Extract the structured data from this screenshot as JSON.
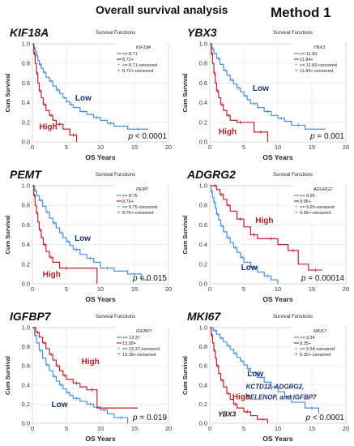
{
  "header": {
    "title": "Overall survival analysis",
    "method": "Method 1"
  },
  "colors": {
    "low": "#4a90d9",
    "high": "#c0202b",
    "gene_label": "#111111",
    "low_label": "#1c2f6b",
    "high_label": "#b01c1c"
  },
  "chart_data": [
    {
      "type": "line",
      "gene": "KIF18A",
      "title": "Survival Functions",
      "xlabel": "OS Years",
      "ylabel": "Cum Survival",
      "xlim": [
        0,
        20
      ],
      "ylim": [
        0,
        1.0
      ],
      "x_ticks": [
        "0",
        "5",
        "10",
        "15",
        "20"
      ],
      "y_ticks": [
        "0.0",
        "0.2",
        "0.4",
        "0.6",
        "0.8",
        "1.0"
      ],
      "legend_title": "KIF18A",
      "legend": [
        "<= 8.71",
        "8.72+",
        "<= 8.71-censored",
        "8.72+-censored"
      ],
      "p_value": "< 0.0001",
      "curve_labels": [
        {
          "text": "Low",
          "group": "low",
          "x": 6.3,
          "y": 0.42
        },
        {
          "text": "High",
          "group": "high",
          "x": 1.0,
          "y": 0.13
        }
      ],
      "series": [
        {
          "name": "<= 8.71",
          "group": "low",
          "x": [
            0,
            0.2,
            0.4,
            0.6,
            0.8,
            1.0,
            1.3,
            1.6,
            2.0,
            2.5,
            3.0,
            3.5,
            4.0,
            4.5,
            5.0,
            5.5,
            6.0,
            7.0,
            8.0,
            9.0,
            10.0,
            11.0,
            12.0,
            14.0,
            17.0
          ],
          "y": [
            1.0,
            0.96,
            0.92,
            0.88,
            0.83,
            0.79,
            0.75,
            0.71,
            0.66,
            0.62,
            0.57,
            0.53,
            0.49,
            0.45,
            0.41,
            0.38,
            0.35,
            0.31,
            0.28,
            0.25,
            0.22,
            0.19,
            0.16,
            0.13,
            0.13
          ]
        },
        {
          "name": "8.72+",
          "group": "high",
          "x": [
            0,
            0.2,
            0.4,
            0.6,
            0.8,
            1.0,
            1.3,
            1.6,
            2.0,
            2.5,
            3.0,
            3.5,
            4.5,
            5.5,
            6.5
          ],
          "y": [
            1.0,
            0.9,
            0.8,
            0.7,
            0.6,
            0.52,
            0.45,
            0.38,
            0.32,
            0.27,
            0.22,
            0.18,
            0.13,
            0.07,
            0.0
          ]
        }
      ]
    },
    {
      "type": "line",
      "gene": "YBX3",
      "title": "Survival Functions",
      "xlabel": "OS Years",
      "ylabel": "Cum Survival",
      "xlim": [
        0,
        20
      ],
      "ylim": [
        0,
        1.0
      ],
      "x_ticks": [
        "0",
        "5",
        "10",
        "15",
        "20"
      ],
      "y_ticks": [
        "0.0",
        "0.2",
        "0.4",
        "0.6",
        "0.8",
        "1.0"
      ],
      "legend_title": "YBX3",
      "legend": [
        "<= 11.83",
        "11.84+",
        "<= 11.83-censored",
        "11.84+-censored"
      ],
      "p_value": "= 0.001",
      "curve_labels": [
        {
          "text": "Low",
          "group": "low",
          "x": 6.3,
          "y": 0.52
        },
        {
          "text": "High",
          "group": "high",
          "x": 1.3,
          "y": 0.08
        }
      ],
      "series": [
        {
          "name": "<= 11.83",
          "group": "low",
          "x": [
            0,
            0.3,
            0.6,
            1.0,
            1.5,
            2.0,
            2.5,
            3.0,
            3.5,
            4.0,
            4.5,
            5.0,
            5.5,
            6.0,
            7.0,
            8.0,
            9.0,
            10.0,
            11.0,
            12.0,
            14.0,
            17.0
          ],
          "y": [
            1.0,
            0.95,
            0.9,
            0.85,
            0.79,
            0.73,
            0.68,
            0.63,
            0.59,
            0.55,
            0.51,
            0.47,
            0.43,
            0.39,
            0.35,
            0.31,
            0.27,
            0.24,
            0.21,
            0.17,
            0.13,
            0.13
          ]
        },
        {
          "name": "11.84+",
          "group": "high",
          "x": [
            0,
            0.2,
            0.4,
            0.6,
            0.8,
            1.0,
            1.3,
            1.6,
            2.0,
            2.5,
            3.0,
            4.0,
            5.0,
            6.5,
            8.5
          ],
          "y": [
            1.0,
            0.9,
            0.8,
            0.7,
            0.6,
            0.52,
            0.45,
            0.38,
            0.32,
            0.27,
            0.22,
            0.2,
            0.2,
            0.1,
            0.0
          ]
        }
      ]
    },
    {
      "type": "line",
      "gene": "PEMT",
      "title": "Survival Functions",
      "xlabel": "OS Years",
      "ylabel": "Cum Survival",
      "xlim": [
        0,
        20
      ],
      "ylim": [
        0,
        1.0
      ],
      "x_ticks": [
        "0",
        "5",
        "10",
        "15",
        "20"
      ],
      "y_ticks": [
        "0.0",
        "0.2",
        "0.4",
        "0.6",
        "0.8",
        "1.0"
      ],
      "legend_title": "PEMT",
      "legend": [
        "<= 8.75",
        "8.76+",
        "<= 8.75-censored",
        "8.76+-censored"
      ],
      "p_value": "= 0.015",
      "curve_labels": [
        {
          "text": "Low",
          "group": "low",
          "x": 6.2,
          "y": 0.44
        },
        {
          "text": "High",
          "group": "high",
          "x": 1.5,
          "y": 0.07
        }
      ],
      "series": [
        {
          "name": "<= 8.75",
          "group": "low",
          "x": [
            0,
            0.3,
            0.6,
            1.0,
            1.5,
            2.0,
            2.5,
            3.0,
            3.5,
            4.0,
            4.5,
            5.0,
            5.5,
            6.0,
            7.0,
            8.0,
            9.0,
            10.0,
            12.0,
            14.0,
            16.0,
            17.0
          ],
          "y": [
            1.0,
            0.95,
            0.9,
            0.85,
            0.79,
            0.73,
            0.67,
            0.62,
            0.57,
            0.52,
            0.47,
            0.43,
            0.39,
            0.35,
            0.3,
            0.26,
            0.22,
            0.16,
            0.13,
            0.1,
            0.04,
            0.04
          ]
        },
        {
          "name": "8.76+",
          "group": "high",
          "x": [
            0,
            0.2,
            0.4,
            0.6,
            0.8,
            1.0,
            1.3,
            1.6,
            2.0,
            2.5,
            3.0,
            4.0,
            6.0,
            9.5
          ],
          "y": [
            1.0,
            0.9,
            0.8,
            0.72,
            0.63,
            0.55,
            0.47,
            0.4,
            0.33,
            0.27,
            0.22,
            0.16,
            0.16,
            0.0
          ]
        }
      ]
    },
    {
      "type": "line",
      "gene": "ADGRG2",
      "title": "Survival Functions",
      "xlabel": "OS Years",
      "ylabel": "Cum Survival",
      "xlim": [
        0,
        20
      ],
      "ylim": [
        0,
        1.0
      ],
      "x_ticks": [
        "0",
        "5",
        "10",
        "15",
        "20"
      ],
      "y_ticks": [
        "0.0",
        "0.2",
        "0.4",
        "0.6",
        "0.8",
        "1.0"
      ],
      "legend_title": "ADGRG2",
      "legend": [
        "<= 9.95",
        "9.96+",
        "<= 9.95-censored",
        "9.96+-censored"
      ],
      "p_value": "= 0.00014",
      "curve_labels": [
        {
          "text": "High",
          "group": "high",
          "x": 6.7,
          "y": 0.62
        },
        {
          "text": "Low",
          "group": "low",
          "x": 4.6,
          "y": 0.14
        }
      ],
      "series": [
        {
          "name": "<= 9.95",
          "group": "low",
          "x": [
            0,
            0.2,
            0.4,
            0.6,
            0.8,
            1.0,
            1.3,
            1.6,
            2.0,
            2.5,
            3.0,
            3.5,
            4.0,
            4.5,
            5.0,
            6.0,
            7.0,
            8.0,
            9.0,
            10.0
          ],
          "y": [
            1.0,
            0.94,
            0.88,
            0.83,
            0.77,
            0.71,
            0.65,
            0.59,
            0.53,
            0.47,
            0.42,
            0.37,
            0.32,
            0.27,
            0.22,
            0.17,
            0.12,
            0.08,
            0.04,
            0.0
          ]
        },
        {
          "name": "9.96+",
          "group": "high",
          "x": [
            0,
            0.5,
            1.0,
            1.5,
            2.0,
            2.5,
            3.0,
            4.0,
            5.0,
            6.0,
            7.0,
            8.0,
            10.0,
            11.5,
            13.0,
            14.5,
            16.5
          ],
          "y": [
            1.0,
            1.0,
            0.96,
            0.91,
            0.86,
            0.8,
            0.74,
            0.66,
            0.58,
            0.5,
            0.46,
            0.46,
            0.4,
            0.34,
            0.2,
            0.14,
            0.14
          ]
        }
      ]
    },
    {
      "type": "line",
      "gene": "IGFBP7",
      "title": "Survival Functions",
      "xlabel": "OS Years",
      "ylabel": "Cum Survival",
      "xlim": [
        0,
        20
      ],
      "ylim": [
        0,
        1.0
      ],
      "x_ticks": [
        "0",
        "5",
        "10",
        "15",
        "20"
      ],
      "y_ticks": [
        "0.0",
        "0.2",
        "0.4",
        "0.6",
        "0.8",
        "1.0"
      ],
      "legend_title": "IGFBP7",
      "legend": [
        "<= 13.37",
        "13.38+",
        "<= 13.37-censored",
        "13.38+-censored"
      ],
      "p_value": "= 0.019",
      "curve_labels": [
        {
          "text": "High",
          "group": "high",
          "x": 7.2,
          "y": 0.62
        },
        {
          "text": "Low",
          "group": "low",
          "x": 2.8,
          "y": 0.17
        }
      ],
      "series": [
        {
          "name": "<= 13.37",
          "group": "low",
          "x": [
            0,
            0.3,
            0.6,
            1.0,
            1.5,
            2.0,
            2.5,
            3.0,
            3.5,
            4.0,
            4.5,
            5.0,
            5.5,
            6.0,
            7.0,
            8.0,
            9.0,
            10.0,
            11.0,
            12.0,
            14.0
          ],
          "y": [
            1.0,
            0.92,
            0.84,
            0.76,
            0.68,
            0.61,
            0.55,
            0.49,
            0.44,
            0.4,
            0.36,
            0.32,
            0.29,
            0.26,
            0.23,
            0.2,
            0.17,
            0.14,
            0.1,
            0.06,
            0.0
          ]
        },
        {
          "name": "13.38+",
          "group": "high",
          "x": [
            0,
            0.5,
            1.0,
            1.5,
            2.0,
            2.5,
            3.0,
            3.5,
            4.0,
            4.5,
            5.0,
            6.0,
            7.0,
            8.0,
            9.5,
            15.5
          ],
          "y": [
            1.0,
            0.95,
            0.9,
            0.84,
            0.78,
            0.72,
            0.66,
            0.6,
            0.55,
            0.5,
            0.46,
            0.42,
            0.38,
            0.35,
            0.16,
            0.16
          ]
        }
      ]
    },
    {
      "type": "line",
      "gene": "MKI67",
      "title": "Survival Functions",
      "xlabel": "OS Years",
      "ylabel": "Cum Survival",
      "xlim": [
        0,
        20
      ],
      "ylim": [
        0,
        1.0
      ],
      "x_ticks": [
        "0",
        "5",
        "10",
        "15",
        "20"
      ],
      "y_ticks": [
        "0.0",
        "0.2",
        "0.4",
        "0.6",
        "0.8",
        "1.0"
      ],
      "legend_title": "MKI67",
      "legend": [
        "<= 9.34",
        "9.35+",
        "<= 9.34-censored",
        "9.35+-censored"
      ],
      "p_value": "< 0.0001",
      "curve_labels": [
        {
          "text": "Low",
          "group": "low",
          "x": 5.5,
          "y": 0.49
        },
        {
          "text": "High",
          "group": "high",
          "x": 3.3,
          "y": 0.25
        }
      ],
      "annotations": [
        {
          "text": "KCTD12, ADGRG2,",
          "group": "low",
          "x": 5.3,
          "y": 0.36
        },
        {
          "text": "SELENOP, and IGFBP7",
          "group": "low",
          "x": 5.3,
          "y": 0.25
        },
        {
          "text": "YBX3",
          "group": "high",
          "x": 1.2,
          "y": 0.07
        }
      ],
      "series": [
        {
          "name": "<= 9.34",
          "group": "low",
          "x": [
            0,
            0.5,
            1.0,
            1.5,
            2.0,
            2.5,
            3.0,
            3.5,
            4.0,
            4.5,
            5.0,
            5.5,
            6.0,
            7.0,
            8.0,
            9.0,
            10.0,
            11.0,
            12.0,
            14.0,
            16.0
          ],
          "y": [
            1.0,
            0.97,
            0.93,
            0.89,
            0.85,
            0.81,
            0.77,
            0.73,
            0.69,
            0.65,
            0.61,
            0.57,
            0.53,
            0.48,
            0.43,
            0.38,
            0.33,
            0.28,
            0.22,
            0.16,
            0.1
          ]
        },
        {
          "name": "9.35+",
          "group": "high",
          "x": [
            0,
            0.2,
            0.4,
            0.6,
            0.8,
            1.0,
            1.3,
            1.6,
            2.0,
            2.5,
            3.0,
            3.5,
            4.0,
            5.0,
            6.0,
            7.0,
            8.5
          ],
          "y": [
            1.0,
            0.92,
            0.84,
            0.76,
            0.68,
            0.6,
            0.52,
            0.45,
            0.38,
            0.31,
            0.25,
            0.2,
            0.16,
            0.12,
            0.08,
            0.04,
            0.0
          ]
        }
      ]
    }
  ]
}
